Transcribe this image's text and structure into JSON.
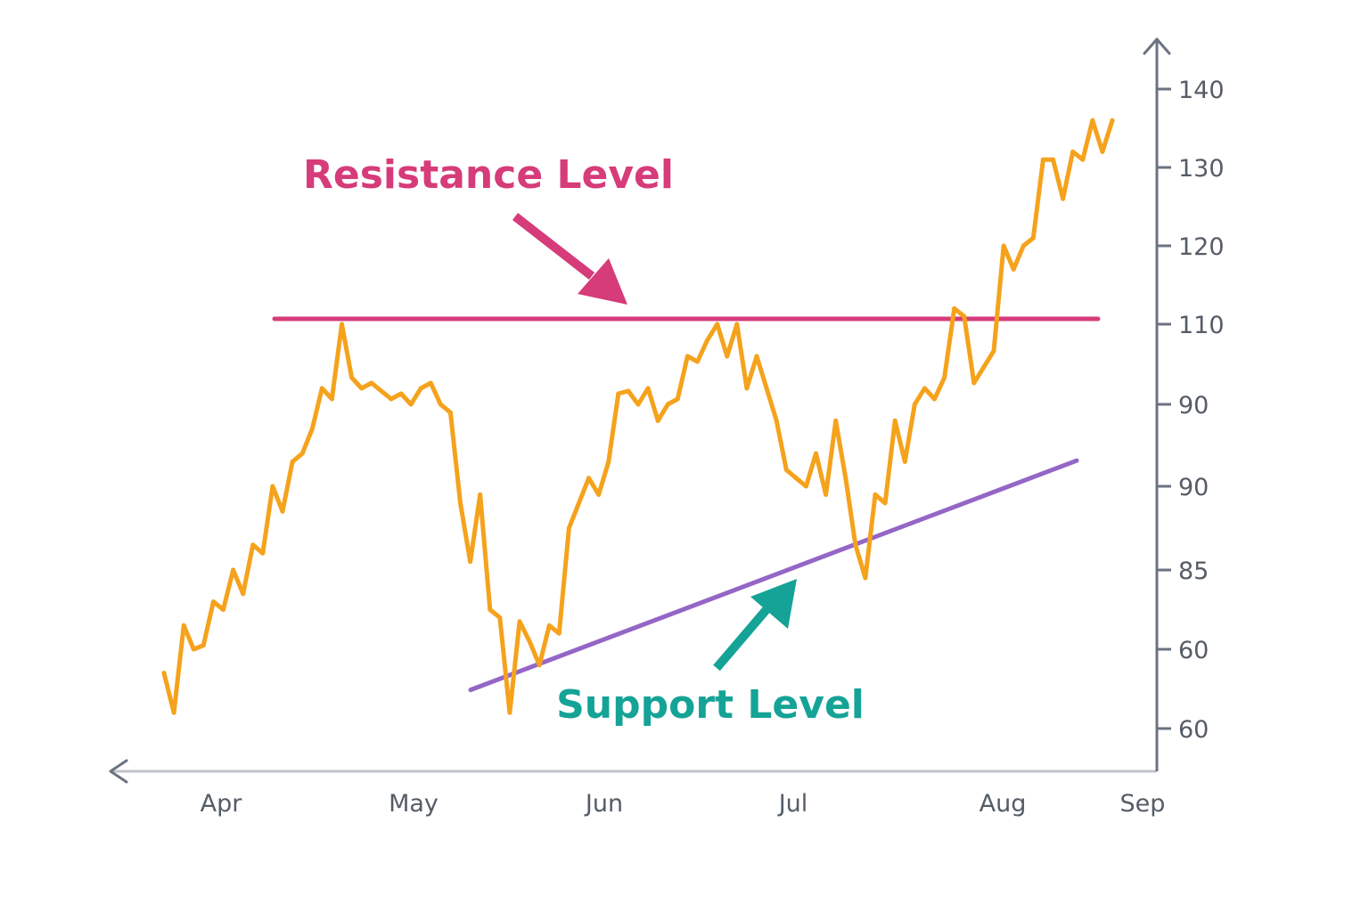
{
  "chart_data": {
    "type": "line",
    "title": "",
    "xlabel": "",
    "ylabel": "",
    "x_ticks": [
      "Apr",
      "May",
      "Jun",
      "Jul",
      "Aug",
      "Sep"
    ],
    "y_ticks": [
      "140",
      "130",
      "120",
      "110",
      "90",
      "90",
      "85",
      "60",
      "60"
    ],
    "colors": {
      "price": "#f5a21c",
      "resistance": "#d63b7a",
      "support": "#9466c6",
      "resistance_label": "#d63b7a",
      "support_label": "#14a396",
      "axis": "#6b7280"
    },
    "series": [
      {
        "values": [
          62,
          57,
          68,
          65,
          65.5,
          71,
          70,
          75,
          72,
          78,
          77,
          85,
          82,
          88,
          89,
          92,
          98,
          96,
          110,
          100,
          98,
          99,
          97.5,
          96,
          97,
          95,
          98,
          99,
          95,
          94,
          83,
          76,
          84,
          70,
          69,
          57,
          68.5,
          66,
          63,
          68,
          67,
          80,
          83,
          86,
          84,
          88,
          97,
          97.5,
          95,
          98,
          93,
          95,
          96,
          104,
          103,
          107,
          110,
          104,
          110,
          98,
          104,
          98,
          93,
          87,
          86,
          85,
          89,
          84,
          93,
          86,
          78,
          74,
          84,
          83,
          93,
          88,
          95,
          98,
          96,
          100,
          112,
          111,
          99,
          102,
          105,
          120,
          117,
          120,
          121,
          131,
          131,
          126,
          132,
          131,
          136,
          132,
          136
        ]
      }
    ],
    "annotations": {
      "resistance_label": "Resistance Level",
      "support_label": "Support Level",
      "resistance_value": 110,
      "support_start": 61,
      "support_end": 94
    }
  }
}
